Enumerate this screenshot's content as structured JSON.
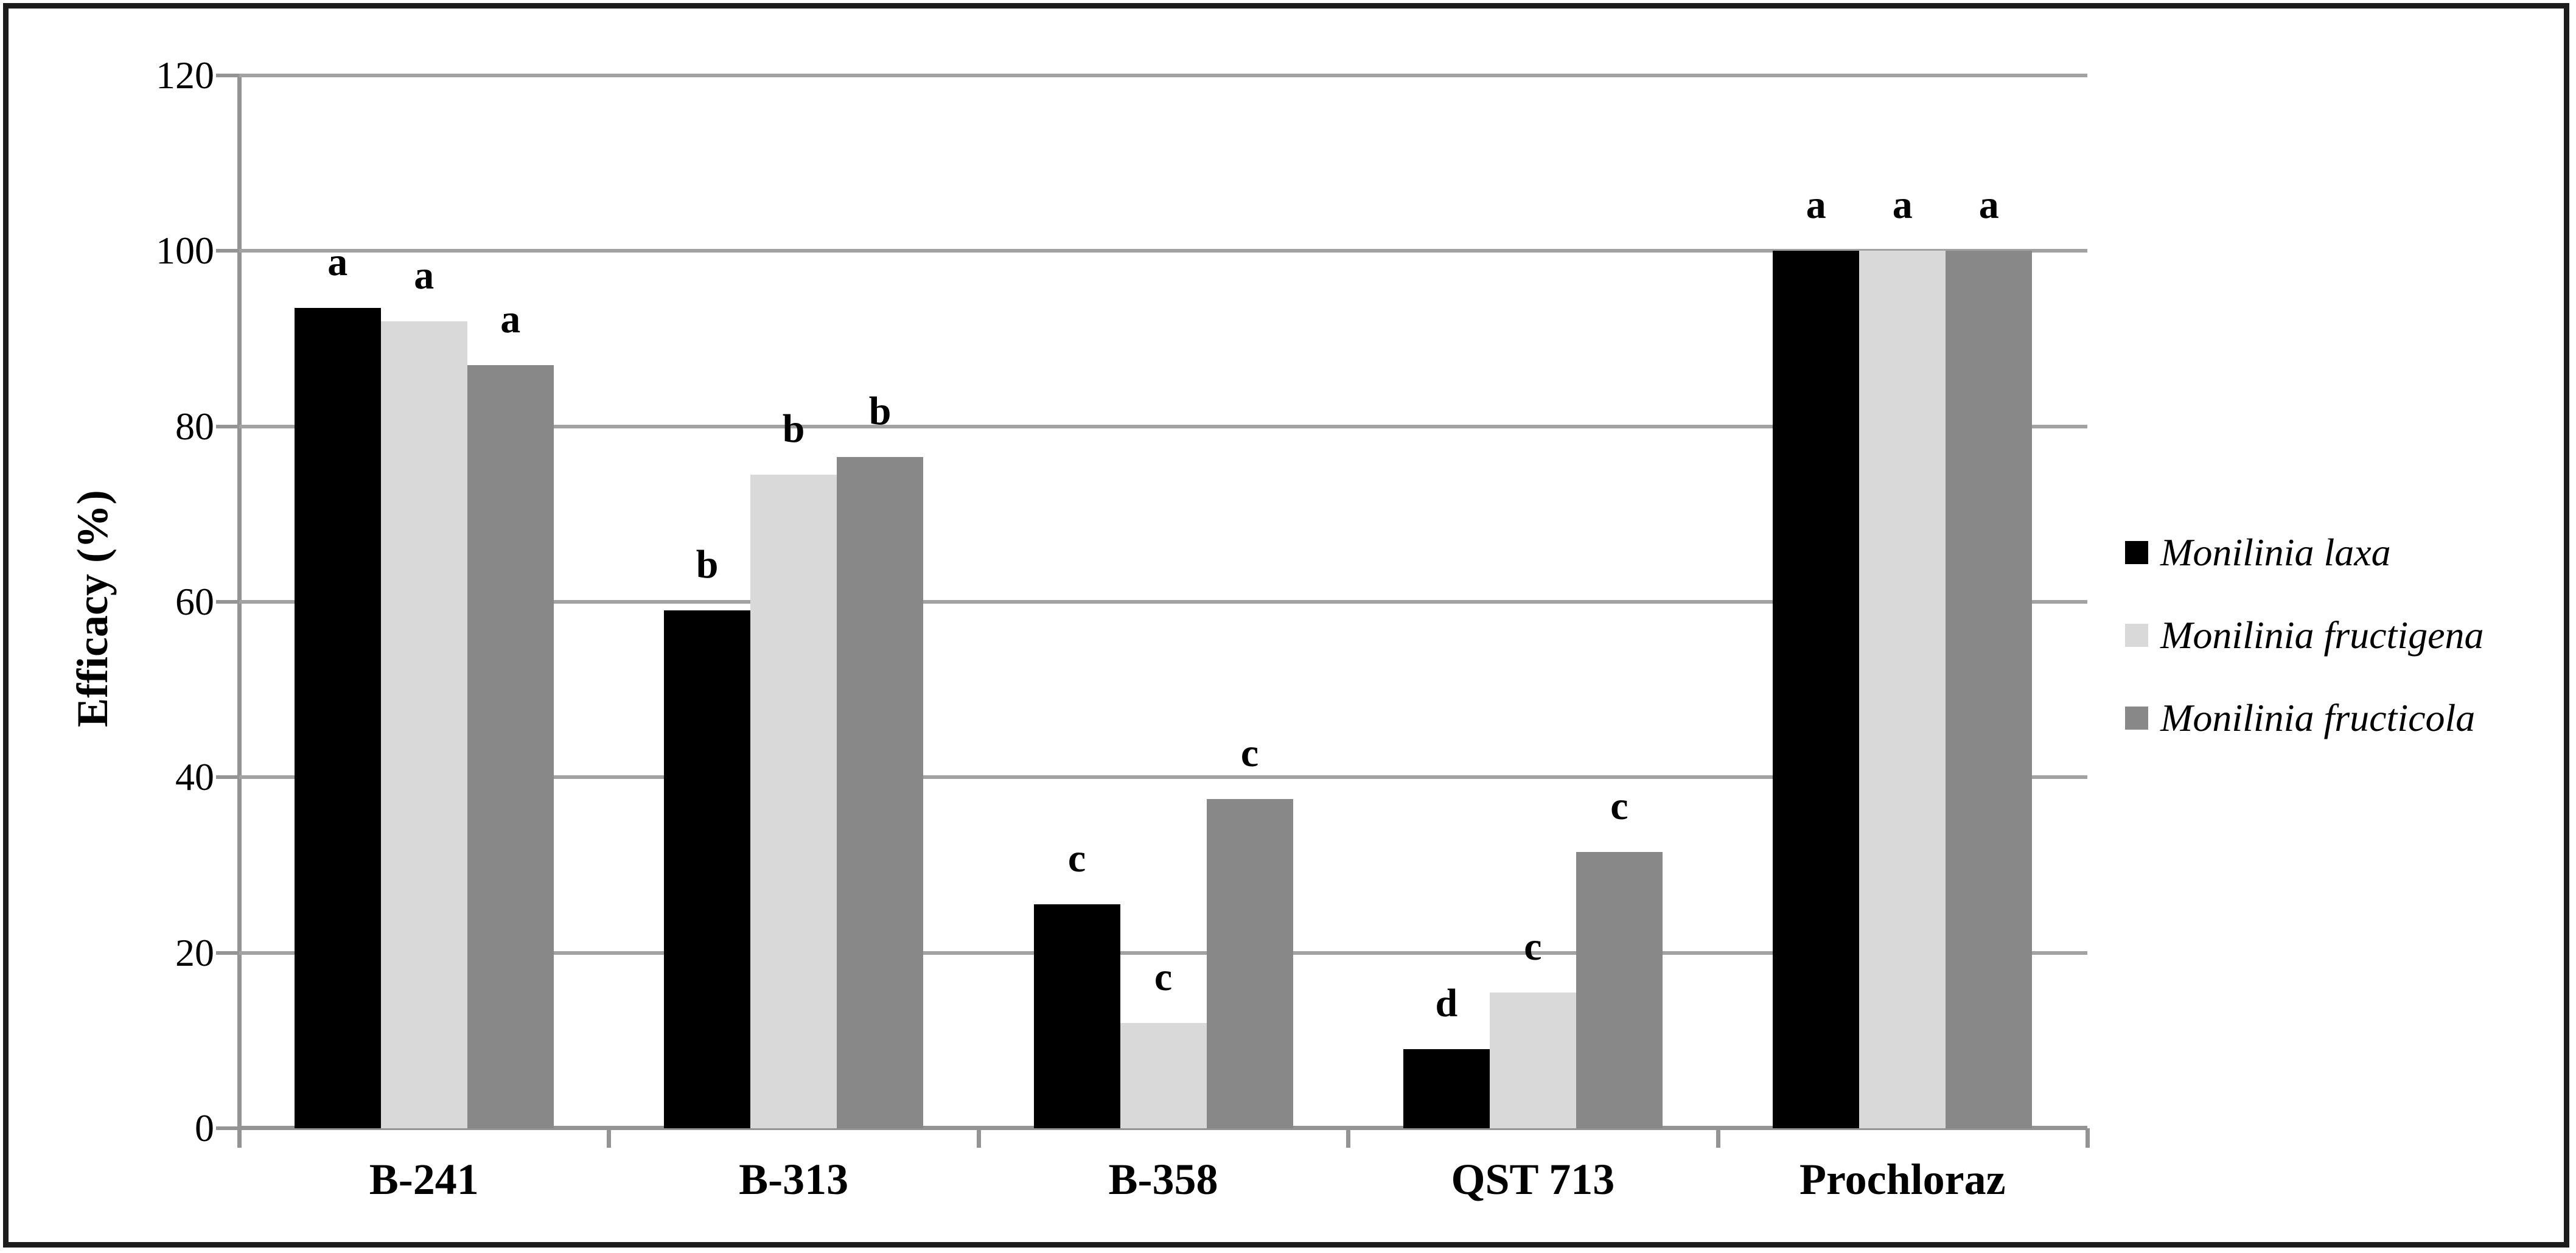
{
  "figure": {
    "background": "#ffffff",
    "border_color": "#1c1c1c"
  },
  "chart_data": {
    "type": "bar",
    "title": "",
    "xlabel": "",
    "ylabel": "Efficacy (%)",
    "y_axis": {
      "min": 0,
      "max": 120,
      "tick_interval": 20,
      "tick_labels": [
        "0",
        "20",
        "40",
        "60",
        "80",
        "100",
        "120"
      ]
    },
    "gridlines": {
      "on": true,
      "values": [
        20,
        40,
        60,
        80,
        100,
        120
      ],
      "color": "#a2a2a2"
    },
    "axis_color": "#949494",
    "categories": [
      "B-241",
      "B-313",
      "B-358",
      "QST 713",
      "Prochloraz"
    ],
    "series": [
      {
        "name": "Monilinia laxa",
        "color": "#000000",
        "values": [
          93.5,
          59,
          25.5,
          9,
          100
        ],
        "letters": [
          "a",
          "b",
          "c",
          "d",
          "a"
        ]
      },
      {
        "name": "Monilinia fructigena",
        "color": "#d9d9d9",
        "values": [
          92,
          74.5,
          12,
          15.5,
          100
        ],
        "letters": [
          "a",
          "b",
          "c",
          "c",
          "a"
        ]
      },
      {
        "name": "Monilinia fructicola",
        "color": "#888888",
        "values": [
          87,
          76.5,
          37.5,
          31.5,
          100
        ],
        "letters": [
          "a",
          "b",
          "c",
          "c",
          "a"
        ]
      }
    ],
    "legend_position": "right"
  }
}
